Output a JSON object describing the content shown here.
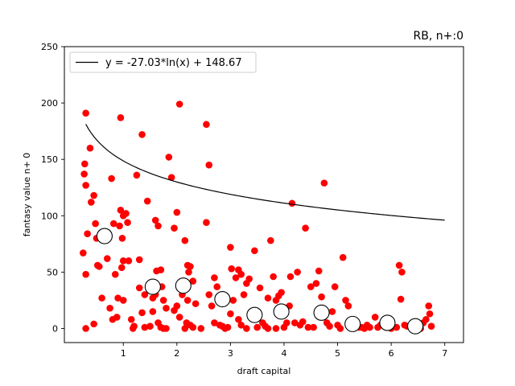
{
  "chart_data": {
    "type": "scatter",
    "title": "RB, n+:0",
    "xlabel": "draft capital",
    "ylabel": "fantasy value n+ 0",
    "xlim": [
      -0.1,
      7.35
    ],
    "ylim": [
      -12.5,
      250
    ],
    "xticks": [
      1,
      2,
      3,
      4,
      5,
      6,
      7
    ],
    "yticks": [
      0,
      50,
      100,
      150,
      200,
      250
    ],
    "grid": false,
    "legend_position": "top-left",
    "fit": {
      "label": "y = -27.03*ln(x) + 148.67",
      "a": -27.03,
      "b": 148.67,
      "x_range": [
        0.3,
        7.0
      ],
      "color": "#000000"
    },
    "series": [
      {
        "kind": "points",
        "color": "#ff0000",
        "points": [
          [
            0.3,
            191
          ],
          [
            0.28,
            146
          ],
          [
            0.27,
            137
          ],
          [
            0.3,
            127
          ],
          [
            0.38,
            160
          ],
          [
            0.45,
            118
          ],
          [
            0.4,
            112
          ],
          [
            0.33,
            84
          ],
          [
            0.48,
            93
          ],
          [
            0.5,
            80
          ],
          [
            0.25,
            67
          ],
          [
            0.52,
            56
          ],
          [
            0.55,
            55
          ],
          [
            0.3,
            48
          ],
          [
            0.6,
            27
          ],
          [
            0.45,
            4
          ],
          [
            0.3,
            0
          ],
          [
            0.7,
            62
          ],
          [
            0.75,
            18
          ],
          [
            0.8,
            8
          ],
          [
            0.85,
            48
          ],
          [
            0.78,
            133
          ],
          [
            0.82,
            93
          ],
          [
            0.95,
            187
          ],
          [
            0.98,
            80
          ],
          [
            0.95,
            105
          ],
          [
            0.93,
            91
          ],
          [
            1.0,
            100
          ],
          [
            1.05,
            102
          ],
          [
            1.08,
            94
          ],
          [
            1.0,
            60
          ],
          [
            0.97,
            54
          ],
          [
            1.1,
            60
          ],
          [
            0.9,
            27
          ],
          [
            1.0,
            25
          ],
          [
            0.88,
            10
          ],
          [
            1.15,
            8
          ],
          [
            1.2,
            2
          ],
          [
            1.18,
            0
          ],
          [
            1.25,
            136
          ],
          [
            1.35,
            172
          ],
          [
            1.45,
            113
          ],
          [
            1.3,
            61
          ],
          [
            1.3,
            36
          ],
          [
            1.4,
            30
          ],
          [
            1.35,
            14
          ],
          [
            1.4,
            1
          ],
          [
            1.5,
            2
          ],
          [
            1.55,
            15
          ],
          [
            1.6,
            96
          ],
          [
            1.65,
            91
          ],
          [
            1.62,
            51
          ],
          [
            1.7,
            52
          ],
          [
            1.55,
            27
          ],
          [
            1.6,
            30
          ],
          [
            1.72,
            37
          ],
          [
            1.75,
            25
          ],
          [
            1.8,
            18
          ],
          [
            1.65,
            5
          ],
          [
            1.7,
            1
          ],
          [
            1.8,
            0
          ],
          [
            1.85,
            152
          ],
          [
            1.9,
            134
          ],
          [
            1.95,
            89
          ],
          [
            2.0,
            103
          ],
          [
            2.05,
            199
          ],
          [
            2.1,
            37
          ],
          [
            2.15,
            78
          ],
          [
            2.2,
            56
          ],
          [
            2.22,
            50
          ],
          [
            2.25,
            55
          ],
          [
            2.1,
            30
          ],
          [
            2.2,
            25
          ],
          [
            2.3,
            42
          ],
          [
            2.0,
            20
          ],
          [
            1.95,
            16
          ],
          [
            2.05,
            10
          ],
          [
            2.18,
            5
          ],
          [
            2.25,
            3
          ],
          [
            2.3,
            1
          ],
          [
            2.35,
            22
          ],
          [
            2.15,
            0
          ],
          [
            2.55,
            181
          ],
          [
            2.6,
            145
          ],
          [
            2.55,
            94
          ],
          [
            2.7,
            45
          ],
          [
            2.75,
            37
          ],
          [
            2.65,
            20
          ],
          [
            2.7,
            5
          ],
          [
            2.8,
            3
          ],
          [
            2.6,
            30
          ],
          [
            2.85,
            2
          ],
          [
            2.9,
            0
          ],
          [
            3.0,
            72
          ],
          [
            3.02,
            53
          ],
          [
            3.1,
            45
          ],
          [
            3.15,
            52
          ],
          [
            3.2,
            48
          ],
          [
            3.25,
            30
          ],
          [
            3.3,
            40
          ],
          [
            3.05,
            25
          ],
          [
            3.0,
            13
          ],
          [
            3.15,
            8
          ],
          [
            3.2,
            3
          ],
          [
            3.3,
            0
          ],
          [
            3.35,
            44
          ],
          [
            3.4,
            10
          ],
          [
            3.45,
            69
          ],
          [
            3.5,
            15
          ],
          [
            3.55,
            36
          ],
          [
            3.6,
            5
          ],
          [
            3.65,
            2
          ],
          [
            3.7,
            27
          ],
          [
            3.75,
            78
          ],
          [
            3.8,
            46
          ],
          [
            3.85,
            25
          ],
          [
            3.9,
            29
          ],
          [
            3.95,
            32
          ],
          [
            3.7,
            0
          ],
          [
            4.0,
            1
          ],
          [
            4.05,
            5
          ],
          [
            4.1,
            20
          ],
          [
            4.12,
            46
          ],
          [
            4.15,
            111
          ],
          [
            4.2,
            5
          ],
          [
            4.25,
            50
          ],
          [
            4.3,
            3
          ],
          [
            4.35,
            6
          ],
          [
            4.4,
            89
          ],
          [
            4.5,
            37
          ],
          [
            4.55,
            1
          ],
          [
            4.6,
            40
          ],
          [
            4.65,
            51
          ],
          [
            4.7,
            28
          ],
          [
            4.75,
            129
          ],
          [
            4.8,
            5
          ],
          [
            4.85,
            2
          ],
          [
            4.9,
            15
          ],
          [
            4.95,
            37
          ],
          [
            5.0,
            3
          ],
          [
            5.05,
            0
          ],
          [
            5.1,
            63
          ],
          [
            5.15,
            25
          ],
          [
            5.2,
            20
          ],
          [
            5.25,
            2
          ],
          [
            5.35,
            3
          ],
          [
            5.4,
            1
          ],
          [
            5.5,
            0
          ],
          [
            5.6,
            1
          ],
          [
            5.7,
            10
          ],
          [
            5.8,
            3
          ],
          [
            5.9,
            2
          ],
          [
            6.0,
            0
          ],
          [
            6.1,
            1
          ],
          [
            6.15,
            56
          ],
          [
            6.2,
            50
          ],
          [
            6.18,
            26
          ],
          [
            6.25,
            3
          ],
          [
            6.3,
            2
          ],
          [
            6.4,
            0
          ],
          [
            6.5,
            1
          ],
          [
            6.6,
            5
          ],
          [
            6.65,
            8
          ],
          [
            6.7,
            20
          ],
          [
            6.72,
            13
          ],
          [
            6.75,
            2
          ],
          [
            6.55,
            0
          ],
          [
            6.45,
            4
          ],
          [
            5.75,
            1
          ],
          [
            5.55,
            3
          ],
          [
            5.45,
            1
          ],
          [
            5.3,
            0
          ],
          [
            4.45,
            1
          ],
          [
            3.85,
            0
          ],
          [
            3.5,
            1
          ],
          [
            2.95,
            1
          ],
          [
            2.45,
            0
          ],
          [
            1.75,
            0
          ]
        ]
      },
      {
        "kind": "bin-means",
        "color": "#000000",
        "fill": "#ffffff",
        "points": [
          [
            0.65,
            82
          ],
          [
            1.55,
            37
          ],
          [
            2.12,
            38
          ],
          [
            2.85,
            26
          ],
          [
            3.45,
            12
          ],
          [
            3.95,
            15
          ],
          [
            4.7,
            14
          ],
          [
            5.28,
            4
          ],
          [
            5.93,
            5
          ],
          [
            6.45,
            2
          ]
        ]
      }
    ]
  }
}
